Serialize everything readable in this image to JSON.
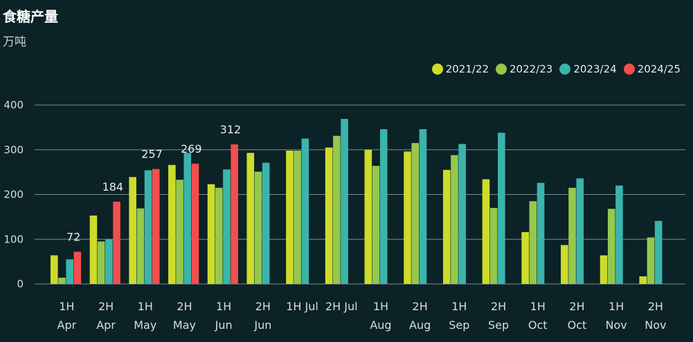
{
  "chart_data": {
    "type": "bar",
    "title": "食糖产量",
    "subtitle": "万吨",
    "xlabel": "",
    "ylabel": "",
    "ylim": [
      0,
      400
    ],
    "yticks": [
      0,
      100,
      200,
      300,
      400
    ],
    "grid": true,
    "legend_position": "top-right",
    "categories": [
      [
        "1H",
        "Apr"
      ],
      [
        "2H",
        "Apr"
      ],
      [
        "1H",
        "May"
      ],
      [
        "2H",
        "May"
      ],
      [
        "1H",
        "Jun"
      ],
      [
        "2H",
        "Jun"
      ],
      [
        "1H Jul"
      ],
      [
        "2H Jul"
      ],
      [
        "1H",
        "Aug"
      ],
      [
        "2H",
        "Aug"
      ],
      [
        "1H",
        "Sep"
      ],
      [
        "2H",
        "Sep"
      ],
      [
        "1H",
        "Oct"
      ],
      [
        "2H",
        "Oct"
      ],
      [
        "1H",
        "Nov"
      ],
      [
        "2H",
        "Nov"
      ]
    ],
    "series": [
      {
        "name": "2021/22",
        "color": "#cddc2a",
        "values": [
          64,
          153,
          239,
          266,
          223,
          293,
          298,
          305,
          300,
          296,
          255,
          234,
          116,
          87,
          64,
          17
        ]
      },
      {
        "name": "2022/23",
        "color": "#95c84c",
        "values": [
          14,
          95,
          169,
          233,
          215,
          251,
          298,
          331,
          264,
          315,
          288,
          170,
          185,
          215,
          168,
          104
        ]
      },
      {
        "name": "2023/24",
        "color": "#3bb4ab",
        "values": [
          55,
          100,
          254,
          293,
          256,
          271,
          325,
          369,
          346,
          346,
          313,
          338,
          226,
          236,
          220,
          141
        ]
      },
      {
        "name": "2024/25",
        "color": "#f44d4d",
        "values": [
          72,
          184,
          257,
          269,
          312,
          null,
          null,
          null,
          null,
          null,
          null,
          null,
          null,
          null,
          null,
          null
        ]
      }
    ],
    "data_labels": {
      "series": "2024/25",
      "values": [
        72,
        184,
        257,
        269,
        312
      ]
    }
  }
}
